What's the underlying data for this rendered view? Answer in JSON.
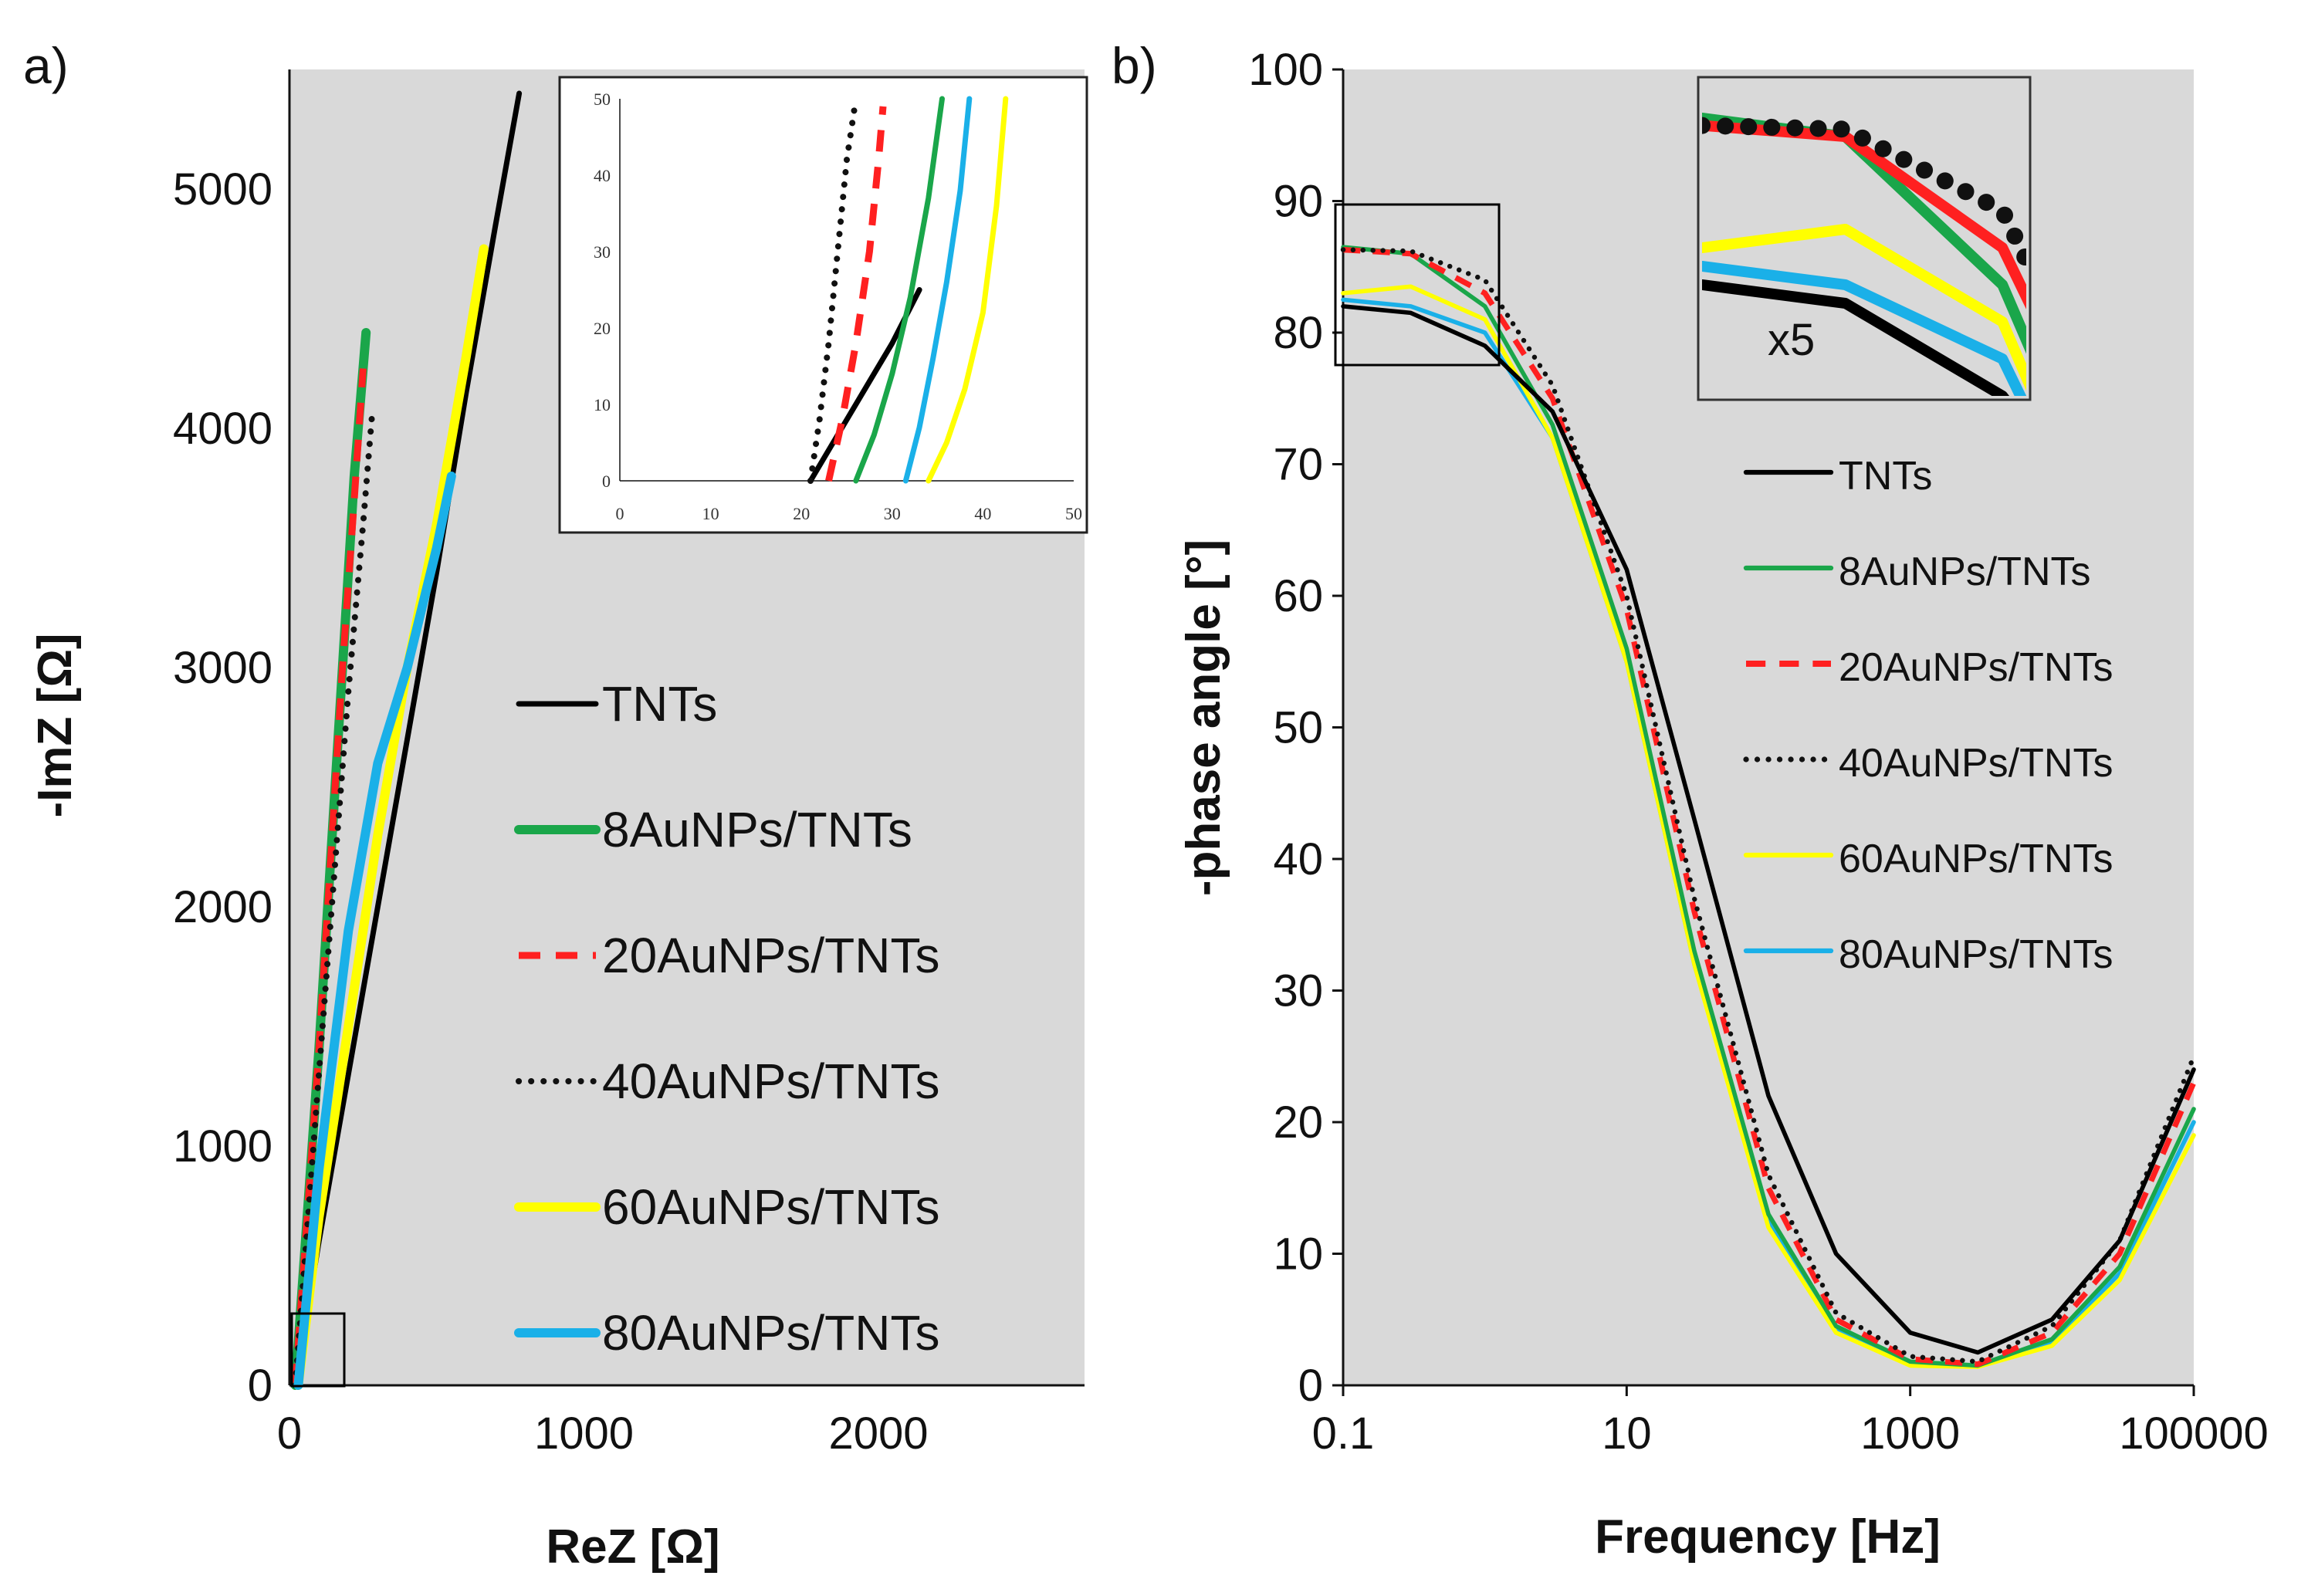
{
  "colors": {
    "TNTs": "#000000",
    "8AuNPs/TNTs": "#1aa64a",
    "20AuNPs/TNTs": "#ff2020",
    "40AuNPs/TNTs": "#111111",
    "60AuNPs/TNTs": "#ffff00",
    "80AuNPs/TNTs": "#1ab0e8",
    "plot_bg": "#d9d9d9"
  },
  "chart_data": [
    {
      "panel": "a)",
      "type": "line",
      "title": "",
      "xlabel": "ReZ [Ω]",
      "ylabel": "-ImZ [Ω]",
      "xlim": [
        0,
        2700
      ],
      "ylim": [
        0,
        5500
      ],
      "xticks": [
        "0",
        "1000",
        "2000"
      ],
      "yticks": [
        "0",
        "1000",
        "2000",
        "3000",
        "4000",
        "5000"
      ],
      "legend": [
        "TNTs",
        "8AuNPs/TNTs",
        "20AuNPs/TNTs",
        "40AuNPs/TNTs",
        "60AuNPs/TNTs",
        "80AuNPs/TNTs"
      ],
      "legend_position": "center-right",
      "series": [
        {
          "name": "TNTs",
          "style": "solid",
          "x": [
            20,
            100,
            200,
            300,
            400,
            500,
            600,
            700,
            780
          ],
          "y": [
            0,
            600,
            1300,
            2000,
            2700,
            3400,
            4150,
            4850,
            5400
          ]
        },
        {
          "name": "8AuNPs/TNTs",
          "style": "solid-thick",
          "x": [
            20,
            60,
            100,
            140,
            180,
            220,
            260
          ],
          "y": [
            0,
            700,
            1400,
            2200,
            3000,
            3800,
            4400
          ]
        },
        {
          "name": "20AuNPs/TNTs",
          "style": "dashed",
          "x": [
            20,
            60,
            100,
            140,
            180,
            220,
            250
          ],
          "y": [
            0,
            700,
            1400,
            2200,
            3000,
            3700,
            4250
          ]
        },
        {
          "name": "40AuNPs/TNTs",
          "style": "dotted",
          "x": [
            20,
            60,
            100,
            150,
            200,
            250,
            280
          ],
          "y": [
            0,
            650,
            1300,
            2100,
            2900,
            3600,
            4050
          ]
        },
        {
          "name": "60AuNPs/TNTs",
          "style": "solid-thick",
          "x": [
            30,
            100,
            200,
            300,
            400,
            500,
            600,
            660
          ],
          "y": [
            0,
            700,
            1500,
            2300,
            3000,
            3600,
            4300,
            4750
          ]
        },
        {
          "name": "80AuNPs/TNTs",
          "style": "solid-thick",
          "x": [
            30,
            100,
            200,
            300,
            400,
            500,
            550
          ],
          "y": [
            0,
            900,
            1900,
            2600,
            3000,
            3500,
            3800
          ]
        }
      ],
      "inset": {
        "xlim": [
          0,
          50
        ],
        "ylim": [
          0,
          50
        ],
        "xticks": [
          "0",
          "10",
          "20",
          "30",
          "40",
          "50"
        ],
        "yticks": [
          "0",
          "10",
          "20",
          "30",
          "40",
          "50"
        ],
        "series": [
          {
            "name": "TNTs",
            "style": "solid",
            "x": [
              21,
              24,
              27,
              30,
              33
            ],
            "y": [
              0,
              6,
              12,
              18,
              25
            ]
          },
          {
            "name": "8AuNPs/TNTs",
            "style": "solid",
            "x": [
              26,
              28,
              30,
              32,
              34,
              35.5
            ],
            "y": [
              0,
              6,
              14,
              24,
              37,
              50
            ]
          },
          {
            "name": "20AuNPs/TNTs",
            "style": "dashed",
            "x": [
              23,
              24.5,
              26,
              27.5,
              28.5,
              29
            ],
            "y": [
              0,
              8,
              18,
              30,
              42,
              49
            ]
          },
          {
            "name": "40AuNPs/TNTs",
            "style": "dotted",
            "x": [
              21,
              22,
              23,
              24,
              25,
              26
            ],
            "y": [
              0,
              8,
              18,
              30,
              42,
              50
            ]
          },
          {
            "name": "60AuNPs/TNTs",
            "style": "solid",
            "x": [
              34,
              36,
              38,
              40,
              41.5,
              42.5
            ],
            "y": [
              0,
              5,
              12,
              22,
              36,
              50
            ]
          },
          {
            "name": "80AuNPs/TNTs",
            "style": "solid",
            "x": [
              31.5,
              33,
              34.5,
              36,
              37.5,
              38.5
            ],
            "y": [
              0,
              7,
              16,
              26,
              38,
              50
            ]
          }
        ]
      }
    },
    {
      "panel": "b)",
      "type": "line",
      "title": "",
      "xlabel": "Frequency [Hz]",
      "ylabel": "-phase angle [°]",
      "xscale": "log",
      "xlim": [
        0.1,
        100000
      ],
      "ylim": [
        0,
        100
      ],
      "xticks": [
        "0.1",
        "10",
        "1000",
        "100000"
      ],
      "yticks": [
        "0",
        "10",
        "20",
        "30",
        "40",
        "50",
        "60",
        "70",
        "80",
        "90",
        "100"
      ],
      "legend": [
        "TNTs",
        "8AuNPs/TNTs",
        "20AuNPs/TNTs",
        "40AuNPs/TNTs",
        "60AuNPs/TNTs",
        "80AuNPs/TNTs"
      ],
      "legend_position": "top-right",
      "inset_label": "x5",
      "series": [
        {
          "name": "TNTs",
          "style": "solid",
          "x": [
            0.1,
            0.3,
            1,
            3,
            10,
            30,
            100,
            300,
            1000,
            3000,
            10000,
            30000,
            100000
          ],
          "y": [
            82,
            81.5,
            79,
            74,
            62,
            43,
            22,
            10,
            4,
            2.5,
            5,
            11,
            24
          ]
        },
        {
          "name": "8AuNPs/TNTs",
          "style": "solid",
          "x": [
            0.1,
            0.3,
            1,
            3,
            10,
            30,
            100,
            300,
            1000,
            3000,
            10000,
            30000,
            100000
          ],
          "y": [
            86.5,
            86,
            82,
            73,
            56,
            33,
            13,
            4.5,
            1.8,
            1.5,
            3.5,
            9,
            21
          ]
        },
        {
          "name": "20AuNPs/TNTs",
          "style": "dashed",
          "x": [
            0.1,
            0.3,
            1,
            3,
            10,
            30,
            100,
            300,
            1000,
            3000,
            10000,
            30000,
            100000
          ],
          "y": [
            86.3,
            86,
            83,
            75,
            59,
            36,
            15,
            5,
            2,
            1.6,
            4,
            10,
            23
          ]
        },
        {
          "name": "40AuNPs/TNTs",
          "style": "dotted",
          "x": [
            0.1,
            0.3,
            1,
            3,
            10,
            30,
            100,
            300,
            1000,
            3000,
            10000,
            30000,
            100000
          ],
          "y": [
            86.3,
            86.2,
            84,
            76,
            60,
            37,
            16,
            5.5,
            2.2,
            1.8,
            4.5,
            11,
            25
          ]
        },
        {
          "name": "60AuNPs/TNTs",
          "style": "solid",
          "x": [
            0.1,
            0.3,
            1,
            3,
            10,
            30,
            100,
            300,
            1000,
            3000,
            10000,
            30000,
            100000
          ],
          "y": [
            83,
            83.5,
            81,
            72,
            55,
            32,
            12,
            4,
            1.5,
            1.4,
            3,
            8,
            19
          ]
        },
        {
          "name": "80AuNPs/TNTs",
          "style": "solid",
          "x": [
            0.1,
            0.3,
            1,
            3,
            10,
            30,
            100,
            300,
            1000,
            3000,
            10000,
            30000,
            100000
          ],
          "y": [
            82.5,
            82,
            80,
            72,
            55,
            32,
            12.5,
            4.2,
            1.6,
            1.5,
            3.2,
            8.5,
            20
          ]
        }
      ]
    }
  ]
}
